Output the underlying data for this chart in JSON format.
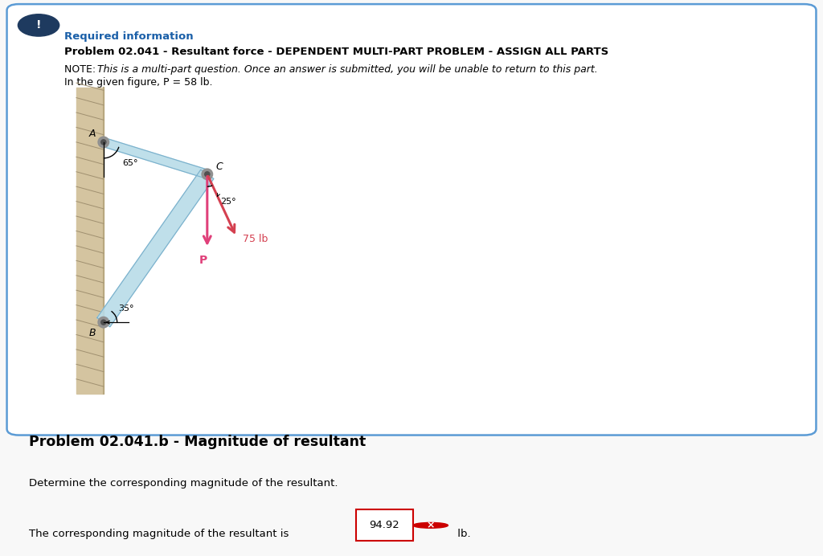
{
  "page_bg": "#f8f8f8",
  "card_bg": "#ffffff",
  "card_border": "#5b9bd5",
  "alert_icon_bg": "#1e3a5f",
  "required_info_color": "#1a5fa8",
  "required_info_text": "Required information",
  "problem_title": "Problem 02.041 - Resultant force - DEPENDENT MULTI-PART PROBLEM - ASSIGN ALL PARTS",
  "note_italic": "This is a multi-part question. Once an answer is submitted, you will be unable to return to this part.",
  "given_text": "In the given figure, P = 58 lb.",
  "wall_color": "#d4c4a0",
  "wall_edge_color": "#b8a880",
  "beam_color": "#b8dce8",
  "beam_edge_color": "#7ab0cc",
  "force_color_P": "#e0407a",
  "force_color_75": "#d44050",
  "pin_outer_color": "#909090",
  "pin_inner_color": "#505050",
  "label_A": "A",
  "label_B": "B",
  "label_C": "C",
  "label_P": "P",
  "label_75lb": "75 lb",
  "angle_65_label": "65°",
  "angle_35_label": "35°",
  "angle_25_label": "25°",
  "section2_title": "Problem 02.041.b - Magnitude of resultant",
  "question_text": "Determine the corresponding magnitude of the resultant.",
  "answer_prefix": "The corresponding magnitude of the resultant is ",
  "answer_value": "94.92",
  "answer_suffix": " lb.",
  "answer_box_color": "#cc0000",
  "answer_icon_color": "#cc0000"
}
